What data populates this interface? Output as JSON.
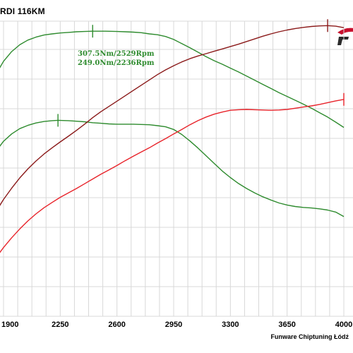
{
  "title": "RDI 116KM",
  "footer": "Funware Chiptuning Łódź",
  "chart_data": {
    "type": "line",
    "xlim": [
      1800,
      4000
    ],
    "ylim": [
      0,
      100
    ],
    "grid": true,
    "xticks": [
      1900,
      2250,
      2600,
      2950,
      3300,
      3650,
      4000
    ],
    "xtick_labels": [
      "1900",
      "2250",
      "2600",
      "2950",
      "3300",
      "3650",
      "4000"
    ],
    "annotations": [
      "307.5Nm/2529Rpm",
      "249.0Nm/2236Rpm"
    ],
    "series": [
      {
        "color": "#2e8b2e",
        "x": [
          1800,
          1850,
          1900,
          1950,
          2000,
          2050,
          2100,
          2150,
          2200,
          2250,
          2300,
          2350,
          2400,
          2450,
          2529,
          2600,
          2650,
          2700,
          2750,
          2800,
          2850,
          2900,
          2950,
          3000,
          3050,
          3100,
          3150,
          3200,
          3250,
          3300,
          3350,
          3400,
          3450,
          3500,
          3550,
          3600,
          3650,
          3700,
          3750,
          3800,
          3850,
          3900,
          3950,
          4000
        ],
        "y": [
          73.3,
          81.7,
          86.4,
          89.7,
          92.0,
          93.6,
          94.6,
          95.3,
          95.7,
          96.0,
          96.2,
          96.4,
          96.5,
          96.6,
          96.6,
          96.5,
          96.4,
          96.3,
          96.1,
          95.7,
          95.4,
          94.8,
          93.8,
          92.4,
          91.0,
          89.5,
          88.0,
          86.6,
          85.4,
          84.1,
          82.8,
          81.4,
          80.0,
          78.6,
          77.2,
          75.8,
          74.5,
          73.2,
          71.9,
          70.5,
          69.0,
          67.5,
          65.8,
          64.0
        ]
      },
      {
        "color": "#2e8b2e",
        "x": [
          1800,
          1850,
          1900,
          1950,
          2000,
          2050,
          2100,
          2150,
          2200,
          2236,
          2300,
          2350,
          2400,
          2450,
          2500,
          2550,
          2600,
          2650,
          2700,
          2750,
          2800,
          2850,
          2900,
          2950,
          3000,
          3050,
          3100,
          3150,
          3200,
          3250,
          3300,
          3350,
          3400,
          3450,
          3500,
          3550,
          3600,
          3650,
          3700,
          3750,
          3800,
          3850,
          3900,
          3950,
          4000
        ],
        "y": [
          51.6,
          55.7,
          59.3,
          61.8,
          63.6,
          64.7,
          65.5,
          66.0,
          66.3,
          66.4,
          66.3,
          66.1,
          65.9,
          65.6,
          65.4,
          65.2,
          65.1,
          65.1,
          65.1,
          65.0,
          64.9,
          64.6,
          64.2,
          63.3,
          61.6,
          59.4,
          57.0,
          54.4,
          51.8,
          49.2,
          47.0,
          45.0,
          43.3,
          41.8,
          40.5,
          39.4,
          38.4,
          37.7,
          37.2,
          36.9,
          36.7,
          36.4,
          36.0,
          35.3,
          33.8
        ]
      },
      {
        "color": "#8b1a1a",
        "x": [
          1800,
          1850,
          1900,
          1950,
          2000,
          2050,
          2100,
          2150,
          2200,
          2250,
          2300,
          2350,
          2400,
          2450,
          2500,
          2550,
          2600,
          2650,
          2700,
          2750,
          2800,
          2850,
          2900,
          2950,
          3000,
          3050,
          3100,
          3150,
          3200,
          3250,
          3300,
          3350,
          3400,
          3450,
          3500,
          3550,
          3600,
          3650,
          3700,
          3750,
          3800,
          3850,
          3900,
          3950,
          4000
        ],
        "y": [
          30.6,
          35.2,
          39.6,
          43.4,
          46.9,
          49.9,
          52.6,
          55.0,
          57.1,
          59.1,
          61.0,
          63.0,
          65.1,
          67.3,
          69.3,
          71.1,
          72.9,
          74.7,
          76.5,
          78.3,
          80.1,
          81.9,
          83.5,
          84.9,
          86.2,
          87.3,
          88.2,
          89.0,
          89.8,
          90.6,
          91.4,
          92.2,
          93.1,
          94.0,
          94.9,
          95.7,
          96.4,
          97.0,
          97.5,
          97.9,
          98.2,
          98.4,
          98.5,
          98.3,
          97.8
        ]
      },
      {
        "color": "#e8232a",
        "x": [
          1800,
          1850,
          1900,
          1950,
          2000,
          2050,
          2100,
          2150,
          2200,
          2250,
          2300,
          2350,
          2400,
          2450,
          2500,
          2550,
          2600,
          2650,
          2700,
          2750,
          2800,
          2850,
          2900,
          2950,
          3000,
          3050,
          3100,
          3150,
          3200,
          3250,
          3300,
          3350,
          3400,
          3450,
          3500,
          3550,
          3600,
          3650,
          3700,
          3750,
          3800,
          3850,
          3900,
          3950,
          4000
        ],
        "y": [
          16.0,
          19.6,
          23.3,
          26.6,
          29.6,
          32.3,
          34.7,
          36.8,
          38.6,
          40.3,
          41.8,
          43.3,
          44.9,
          46.5,
          48.1,
          49.6,
          51.1,
          52.7,
          54.2,
          55.7,
          57.1,
          58.7,
          60.2,
          61.8,
          63.3,
          64.9,
          66.3,
          67.5,
          68.5,
          69.2,
          69.8,
          70.0,
          70.1,
          70.0,
          69.9,
          69.8,
          69.9,
          70.1,
          70.5,
          70.9,
          71.3,
          71.8,
          72.4,
          73.0,
          73.5
        ]
      }
    ]
  }
}
